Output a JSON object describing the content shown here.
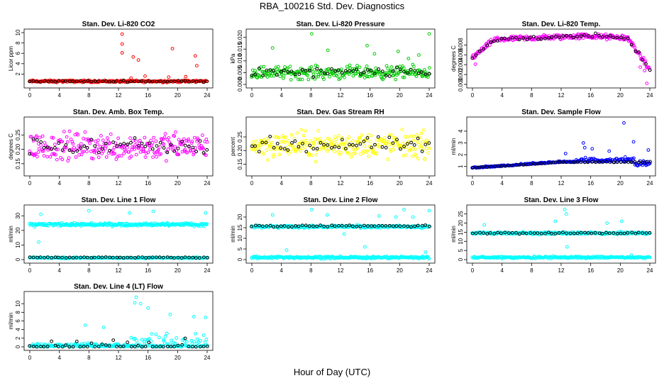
{
  "page_title": "RBA_100216  Std. Dev. Diagnostics",
  "x_axis_label": "Hour of Day (UTC)",
  "colors": {
    "red": "#ff0000",
    "green": "#00cc00",
    "magenta": "#ff00ff",
    "yellow": "#ffff00",
    "blue": "#0000ff",
    "cyan": "#00ffff",
    "black": "#000000"
  },
  "chart_data": [
    {
      "title": "Stan. Dev. Li-820 CO2",
      "type": "scatter",
      "ylabel": "Licor ppm",
      "color": "#ff0000",
      "xlim": [
        0,
        24
      ],
      "xticks": [
        "0",
        "4",
        "8",
        "12",
        "16",
        "20",
        "24"
      ],
      "ylim": [
        0,
        10
      ],
      "yticks": [
        2,
        4,
        6,
        8,
        10
      ],
      "ytick_labels": [
        "2",
        "4",
        "6",
        "8",
        "10"
      ],
      "base": 0.6,
      "spread": 0.3,
      "black_base": 0.6,
      "black_spread": 0.2,
      "outliers": [
        [
          12.5,
          9.7
        ],
        [
          12.5,
          7.8
        ],
        [
          12.5,
          6.1
        ],
        [
          14.0,
          5.3
        ],
        [
          14.7,
          4.7
        ],
        [
          19.3,
          6.9
        ],
        [
          22.4,
          5.5
        ],
        [
          22.6,
          3.6
        ],
        [
          15.6,
          1.6
        ],
        [
          18.8,
          1.4
        ],
        [
          21.1,
          1.5
        ],
        [
          13.7,
          1.2
        ]
      ]
    },
    {
      "title": "Stan. Dev. Li-820 Pressure",
      "type": "scatter",
      "ylabel": "kPa",
      "color": "#00cc00",
      "xlim": [
        0,
        24
      ],
      "xticks": [
        "0",
        "4",
        "8",
        "12",
        "16",
        "20",
        "24"
      ],
      "ylim": [
        0,
        0.022
      ],
      "yticks": [
        0,
        0.005,
        0.01,
        0.015,
        0.02
      ],
      "ytick_labels": [
        "0.000",
        "0.005",
        "0.010",
        "0.015",
        "0.020"
      ],
      "base": 0.005,
      "spread": 0.004,
      "black_base": 0.005,
      "black_spread": 0.003,
      "outliers": [
        [
          2.8,
          0.0155
        ],
        [
          8.1,
          0.0215
        ],
        [
          10.3,
          0.0145
        ],
        [
          15.6,
          0.0165
        ],
        [
          16.6,
          0.013
        ],
        [
          19.8,
          0.014
        ],
        [
          22.6,
          0.0125
        ],
        [
          24.0,
          0.0215
        ],
        [
          21.2,
          0.011
        ]
      ]
    },
    {
      "title": "Stan. Dev. Li-820 Temp.",
      "type": "scatter",
      "ylabel": "degrees C",
      "color": "#ff00ff",
      "xlim": [
        0,
        24
      ],
      "xticks": [
        "0",
        "4",
        "8",
        "12",
        "16",
        "20",
        "24"
      ],
      "ylim": [
        0,
        0.0105
      ],
      "yticks": [
        0,
        0.002,
        0.004,
        0.006,
        0.008
      ],
      "ytick_labels": [
        "0.000",
        "0.002",
        "0.004",
        "0.006",
        "0.008"
      ],
      "profile": "temp",
      "outliers": [
        [
          23.6,
          0.0002
        ],
        [
          23.3,
          0.0028
        ],
        [
          22.7,
          0.0035
        ],
        [
          0.4,
          0.0041
        ]
      ]
    },
    {
      "title": "Stan. Dev. Amb. Box Temp.",
      "type": "scatter",
      "ylabel": "degrees C",
      "color": "#ff00ff",
      "xlim": [
        0,
        24
      ],
      "xticks": [
        "0",
        "4",
        "8",
        "12",
        "16",
        "20",
        "24"
      ],
      "ylim": [
        0.12,
        0.3
      ],
      "yticks": [
        0.15,
        0.2,
        0.25
      ],
      "ytick_labels": [
        "0.15",
        "0.20",
        "0.25"
      ],
      "base": 0.21,
      "spread": 0.07,
      "black_base": 0.21,
      "black_spread": 0.04,
      "outliers": []
    },
    {
      "title": "Stan. Dev. Gas Stream RH",
      "type": "scatter",
      "ylabel": "percent",
      "color": "#ffff00",
      "xlim": [
        0,
        24
      ],
      "xticks": [
        "0",
        "4",
        "8",
        "12",
        "16",
        "20",
        "24"
      ],
      "ylim": [
        0.12,
        0.31
      ],
      "yticks": [
        0.15,
        0.2,
        0.25
      ],
      "ytick_labels": [
        "0.15",
        "0.20",
        "0.25"
      ],
      "base": 0.22,
      "spread": 0.07,
      "black_base": 0.22,
      "black_spread": 0.04,
      "outliers": []
    },
    {
      "title": "Stan. Dev. Sample Flow",
      "type": "scatter",
      "ylabel": "ml/min",
      "color": "#0000ff",
      "xlim": [
        0,
        24
      ],
      "xticks": [
        "0",
        "4",
        "8",
        "12",
        "16",
        "20",
        "24"
      ],
      "ylim": [
        0.5,
        4.9
      ],
      "yticks": [
        1,
        2,
        3,
        4
      ],
      "ytick_labels": [
        "1",
        "2",
        "3",
        "4"
      ],
      "profile": "flow",
      "outliers": [
        [
          20.5,
          4.7
        ],
        [
          15.0,
          3.0
        ],
        [
          15.2,
          2.6
        ],
        [
          12.6,
          2.1
        ],
        [
          23.8,
          2.4
        ],
        [
          21.8,
          3.1
        ],
        [
          18.5,
          2.3
        ],
        [
          16.2,
          2.5
        ]
      ]
    },
    {
      "title": "Stan. Dev. Line 1 Flow",
      "type": "scatter",
      "ylabel": "ml/min",
      "color": "#00ffff",
      "xlim": [
        0,
        24
      ],
      "xticks": [
        "0",
        "4",
        "8",
        "12",
        "16",
        "20",
        "24"
      ],
      "ylim": [
        0,
        35
      ],
      "yticks": [
        0,
        10,
        20,
        30
      ],
      "ytick_labels": [
        "0",
        "10",
        "20",
        "30"
      ],
      "bands": [
        {
          "base": 24,
          "spread": 1.5
        },
        {
          "base": 1.2,
          "spread": 0.6
        }
      ],
      "black_base": 1.4,
      "black_spread": 0.5,
      "outliers": [
        [
          1.5,
          31
        ],
        [
          8,
          33.5
        ],
        [
          13.5,
          32
        ],
        [
          16.7,
          33
        ],
        [
          23.8,
          32
        ],
        [
          1.2,
          12
        ]
      ]
    },
    {
      "title": "Stan. Dev. Line 2 Flow",
      "type": "scatter",
      "ylabel": "ml/min",
      "color": "#00ffff",
      "xlim": [
        0,
        24
      ],
      "xticks": [
        "0",
        "4",
        "8",
        "12",
        "16",
        "20",
        "24"
      ],
      "ylim": [
        0,
        24
      ],
      "yticks": [
        0,
        5,
        10,
        15,
        20
      ],
      "ytick_labels": [
        "0",
        "5",
        "10",
        "15",
        "20"
      ],
      "bands": [
        {
          "base": 15.5,
          "spread": 1
        },
        {
          "base": 1.0,
          "spread": 0.8
        }
      ],
      "black_base": 15.8,
      "black_spread": 0.6,
      "outliers": [
        [
          2.8,
          21
        ],
        [
          8.1,
          23.5
        ],
        [
          10.2,
          21
        ],
        [
          17.2,
          20.5
        ],
        [
          20.6,
          23.5
        ],
        [
          24.0,
          23
        ],
        [
          19.5,
          20
        ],
        [
          21.8,
          20
        ],
        [
          12.5,
          12
        ],
        [
          15.3,
          6
        ],
        [
          4.7,
          4.5
        ],
        [
          23.5,
          3.5
        ]
      ]
    },
    {
      "title": "Stan. Dev. Line 3 Flow",
      "type": "scatter",
      "ylabel": "ml/min",
      "color": "#00ffff",
      "xlim": [
        0,
        24
      ],
      "xticks": [
        "0",
        "4",
        "8",
        "12",
        "16",
        "20",
        "24"
      ],
      "ylim": [
        0,
        28
      ],
      "yticks": [
        0,
        5,
        10,
        15,
        20,
        25
      ],
      "ytick_labels": [
        "0",
        "5",
        "10",
        "15",
        "20",
        "25"
      ],
      "bands": [
        {
          "base": 14.5,
          "spread": 1
        },
        {
          "base": 1.2,
          "spread": 0.8
        }
      ],
      "black_base": 14.5,
      "black_spread": 0.6,
      "outliers": [
        [
          12.5,
          27.5
        ],
        [
          12.7,
          25
        ],
        [
          11.2,
          21
        ],
        [
          18.2,
          20
        ],
        [
          20.2,
          21
        ],
        [
          1.6,
          19
        ],
        [
          12.8,
          7
        ],
        [
          21.5,
          2.5
        ]
      ]
    },
    {
      "title": "Stan. Dev. Line 4 (LT) Flow",
      "type": "scatter",
      "ylabel": "ml/min",
      "color": "#00ffff",
      "xlim": [
        0,
        24
      ],
      "xticks": [
        "0",
        "4",
        "8",
        "12",
        "16",
        "20",
        "24"
      ],
      "ylim": [
        0,
        12
      ],
      "yticks": [
        0,
        2,
        4,
        6,
        8,
        10
      ],
      "ytick_labels": [
        "0",
        "2",
        "4",
        "6",
        "8",
        "10"
      ],
      "profile": "line4",
      "outliers": [
        [
          14.4,
          11.5
        ],
        [
          14.2,
          10.2
        ],
        [
          15.0,
          10
        ],
        [
          16.0,
          9
        ],
        [
          19.0,
          7.5
        ],
        [
          22.2,
          7
        ],
        [
          23.8,
          6.8
        ],
        [
          7.5,
          5
        ],
        [
          10.0,
          4.5
        ]
      ]
    }
  ]
}
